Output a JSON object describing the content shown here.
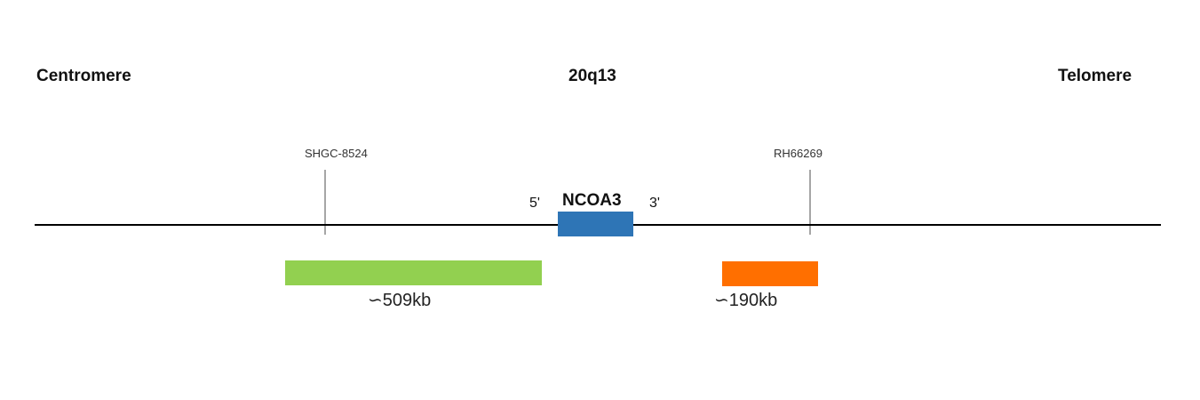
{
  "header": {
    "left": "Centromere",
    "center": "20q13",
    "right": "Telomere"
  },
  "markers": [
    {
      "label": "SHGC-8524"
    },
    {
      "label": "RH66269"
    }
  ],
  "gene": {
    "name": "NCOA3",
    "five_prime": "5'",
    "three_prime": "3'",
    "color": "#2e75b6"
  },
  "probes": [
    {
      "size_label": "∽509kb",
      "color": "#92d050"
    },
    {
      "size_label": "∽190kb",
      "color": "#ff6f00"
    }
  ]
}
